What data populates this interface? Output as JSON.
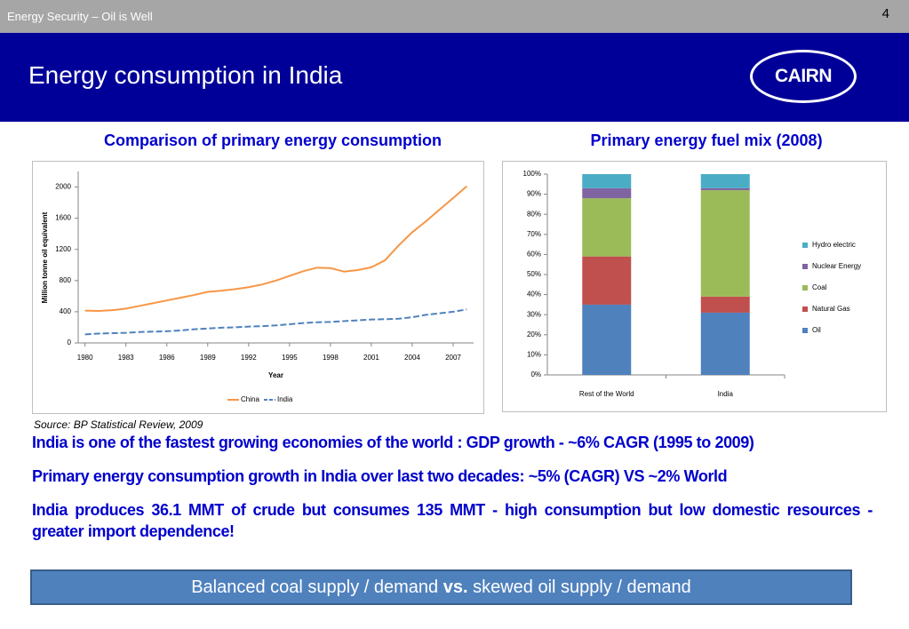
{
  "header": {
    "section": "Energy Security – Oil is Well",
    "page": "4",
    "title": "Energy consumption in India",
    "logo": "CAIRN"
  },
  "chart_data": [
    {
      "type": "line",
      "title": "Comparison of primary energy consumption",
      "xlabel": "Year",
      "ylabel": "Million tonne oil equivalent",
      "x": [
        1980,
        1981,
        1982,
        1983,
        1984,
        1985,
        1986,
        1987,
        1988,
        1989,
        1990,
        1991,
        1992,
        1993,
        1994,
        1995,
        1996,
        1997,
        1998,
        1999,
        2000,
        2001,
        2002,
        2003,
        2004,
        2005,
        2006,
        2007,
        2008
      ],
      "series": [
        {
          "name": "China",
          "color": "#f79646",
          "dashed": false,
          "values": [
            415,
            410,
            420,
            440,
            475,
            510,
            545,
            580,
            615,
            655,
            670,
            690,
            715,
            750,
            800,
            860,
            920,
            965,
            960,
            915,
            935,
            970,
            1060,
            1250,
            1420,
            1560,
            1710,
            1860,
            2010
          ]
        },
        {
          "name": "India",
          "color": "#4f81bd",
          "dashed": true,
          "values": [
            110,
            120,
            125,
            130,
            140,
            145,
            150,
            160,
            175,
            185,
            195,
            200,
            210,
            215,
            225,
            240,
            255,
            265,
            270,
            280,
            290,
            300,
            305,
            310,
            330,
            360,
            380,
            400,
            430
          ]
        }
      ],
      "xlim": [
        1979.5,
        2008.5
      ],
      "xticks": [
        1980,
        1983,
        1986,
        1989,
        1992,
        1995,
        1998,
        2001,
        2004,
        2007
      ],
      "ylim": [
        0,
        2200
      ],
      "yticks": [
        0,
        400,
        800,
        1200,
        1600,
        2000
      ],
      "grid": false,
      "legend": "bottom"
    },
    {
      "type": "stacked_bar",
      "title": "Primary energy fuel mix (2008)",
      "categories": [
        "Rest of the World",
        "India"
      ],
      "series": [
        {
          "name": "Oil",
          "color": "#4f81bd",
          "values": [
            35,
            31
          ]
        },
        {
          "name": "Natural Gas",
          "color": "#c0504d",
          "values": [
            24,
            8
          ]
        },
        {
          "name": "Coal",
          "color": "#9bbb59",
          "values": [
            29,
            53
          ]
        },
        {
          "name": "Nuclear Energy",
          "color": "#8064a2",
          "values": [
            5,
            1
          ]
        },
        {
          "name": "Hydro electric",
          "color": "#4bacc6",
          "values": [
            7,
            7
          ]
        }
      ],
      "ylim": [
        0,
        100
      ],
      "yticks": [
        {
          "value": 0,
          "label": "0%"
        },
        {
          "value": 10,
          "label": "10%"
        },
        {
          "value": 20,
          "label": "20%"
        },
        {
          "value": 30,
          "label": "30%"
        },
        {
          "value": 40,
          "label": "40%"
        },
        {
          "value": 50,
          "label": "50%"
        },
        {
          "value": 60,
          "label": "60%"
        },
        {
          "value": 70,
          "label": "70%"
        },
        {
          "value": 80,
          "label": "80%"
        },
        {
          "value": 90,
          "label": "90%"
        },
        {
          "value": 100,
          "label": "100%"
        }
      ],
      "grid": false,
      "legend": "right"
    }
  ],
  "source": "Source: BP Statistical Review, 2009",
  "bullets": [
    "India is one of the fastest growing economies of the world : GDP growth - ~6% CAGR (1995 to 2009)",
    "Primary energy consumption growth in India over last two decades: ~5% (CAGR) VS ~2% World",
    "India produces 36.1 MMT of crude but consumes 135 MMT - high consumption but low domestic resources  - greater import dependence!"
  ],
  "banner": [
    "Balanced coal supply / demand ",
    "vs.",
    " skewed oil supply / demand"
  ]
}
